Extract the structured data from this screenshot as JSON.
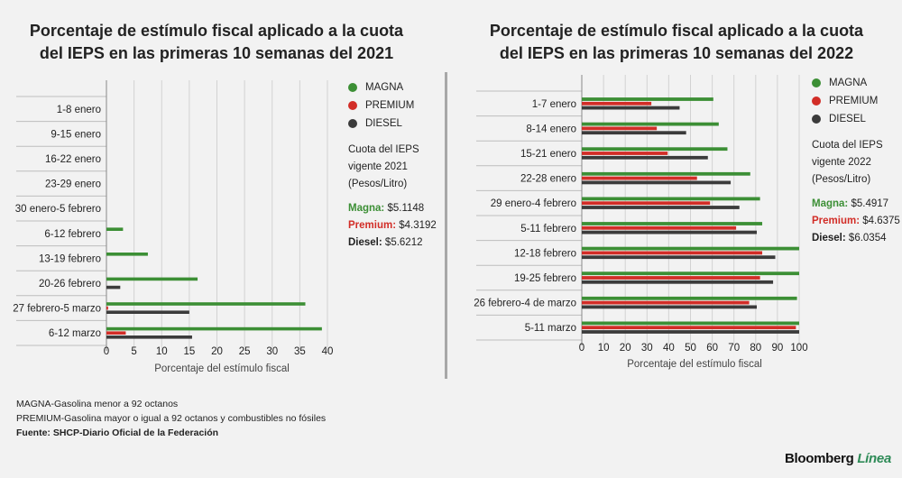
{
  "colors": {
    "magna": "#3c8f35",
    "premium": "#d22d27",
    "diesel": "#3b3b3b"
  },
  "legend": {
    "magna": "MAGNA",
    "premium": "PREMIUM",
    "diesel": "DIESEL"
  },
  "left": {
    "title_line1": "Porcentaje de estímulo fiscal aplicado a la cuota",
    "title_line2": "del IEPS en las primeras 10 semanas del 2021",
    "quota_title": "Cuota del IEPS vigente 2021 (Pesos/Litro)",
    "magna_label": "Magna:",
    "magna_value": "$5.1148",
    "premium_label": "Premium:",
    "premium_value": "$4.3192",
    "diesel_label": "Diesel:",
    "diesel_value": "$5.6212"
  },
  "right": {
    "title_line1": "Porcentaje de estímulo fiscal aplicado a la cuota",
    "title_line2": "del IEPS en las primeras 10 semanas del 2022",
    "quota_title": "Cuota del IEPS vigente 2022 (Pesos/Litro)",
    "magna_label": "Magna:",
    "magna_value": "$5.4917",
    "premium_label": "Premium:",
    "premium_value": "$4.6375",
    "diesel_label": "Diesel:",
    "diesel_value": "$6.0354"
  },
  "notes": {
    "line1": "MAGNA-Gasolina menor a 92 octanos",
    "line2": "PREMIUM-Gasolina mayor o igual a 92 octanos y combustibles no fósiles",
    "line3": "Fuente: SHCP-Diario Oficial de la Federación"
  },
  "brand": {
    "main": "Bloomberg",
    "accent": "Línea"
  },
  "chart_data": [
    {
      "type": "bar",
      "orientation": "horizontal",
      "title": "Porcentaje de estímulo fiscal aplicado a la cuota del IEPS en las primeras 10 semanas del 2021",
      "xlabel": "Porcentaje del estímulo fiscal",
      "ylabel": "",
      "xlim": [
        0,
        40
      ],
      "xticks": [
        0,
        5,
        10,
        15,
        20,
        25,
        30,
        35,
        40
      ],
      "categories": [
        "1-8 enero",
        "9-15 enero",
        "16-22 enero",
        "23-29 enero",
        "30 enero-5 febrero",
        "6-12 febrero",
        "13-19 febrero",
        "20-26 febrero",
        "27 febrero-5 marzo",
        "6-12 marzo"
      ],
      "series": [
        {
          "name": "MAGNA",
          "values": [
            0,
            0,
            0,
            0,
            0,
            3,
            7.5,
            16.5,
            36,
            39
          ]
        },
        {
          "name": "PREMIUM",
          "values": [
            0,
            0,
            0,
            0,
            0,
            0,
            0,
            0,
            0.3,
            3.5
          ]
        },
        {
          "name": "DIESEL",
          "values": [
            0,
            0,
            0,
            0,
            0,
            0,
            0,
            2.5,
            15,
            15.5
          ]
        }
      ]
    },
    {
      "type": "bar",
      "orientation": "horizontal",
      "title": "Porcentaje de estímulo fiscal aplicado a la cuota del IEPS en las primeras 10 semanas del 2022",
      "xlabel": "Porcentaje del estímulo fiscal",
      "ylabel": "",
      "xlim": [
        0,
        100
      ],
      "xticks": [
        0,
        10,
        20,
        30,
        40,
        50,
        60,
        70,
        80,
        90,
        100
      ],
      "categories": [
        "1-7 enero",
        "8-14 enero",
        "15-21 enero",
        "22-28 enero",
        "29 enero-4 febrero",
        "5-11 febrero",
        "12-18 febrero",
        "19-25 febrero",
        "26 febrero-4 de marzo",
        "5-11 marzo"
      ],
      "series": [
        {
          "name": "MAGNA",
          "values": [
            60.5,
            63,
            67,
            77.5,
            82,
            83,
            100,
            100,
            99,
            100
          ]
        },
        {
          "name": "PREMIUM",
          "values": [
            32,
            34.5,
            39.5,
            53,
            59,
            71,
            83,
            82,
            77,
            98.5
          ]
        },
        {
          "name": "DIESEL",
          "values": [
            45,
            48,
            58,
            68.5,
            72.5,
            80.5,
            89,
            88,
            80.5,
            100
          ]
        }
      ]
    }
  ]
}
